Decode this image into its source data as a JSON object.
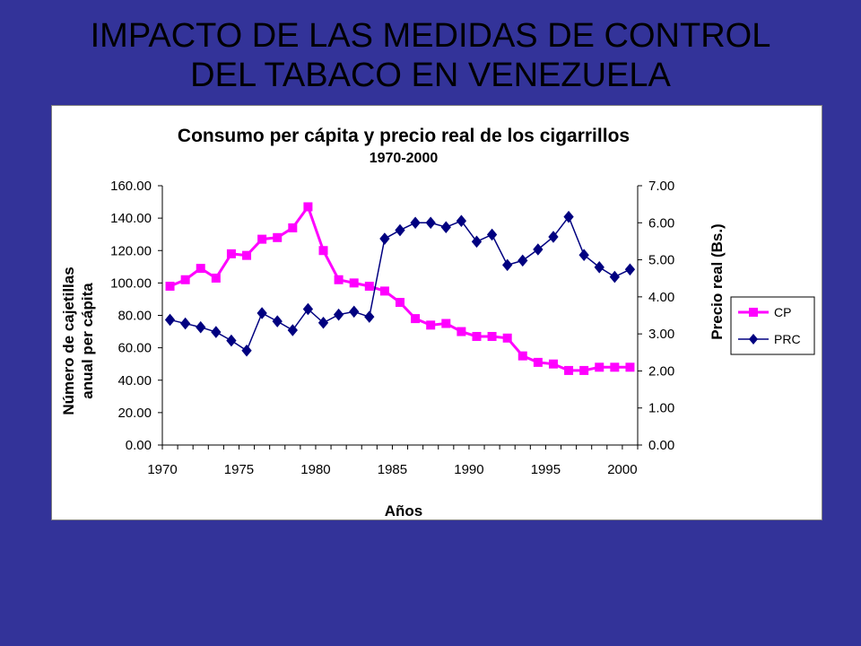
{
  "slide": {
    "title_line1": "IMPACTO DE LAS MEDIDAS DE CONTROL",
    "title_line2": "DEL TABACO EN VENEZUELA"
  },
  "chart_data": {
    "type": "line",
    "title": "Consumo per cápita y precio real de los cigarrillos",
    "subtitle": "1970-2000",
    "xlabel": "Años",
    "ylabel_line1": "Número de cajetillas",
    "ylabel_line2": "anual per cápita",
    "y2label": "Precio real (Bs.)",
    "xlim": [
      1970,
      2001
    ],
    "ylim": [
      0,
      160
    ],
    "y2lim": [
      0,
      7
    ],
    "x_ticks": [
      "1970",
      "1975",
      "1980",
      "1985",
      "1990",
      "1995",
      "2000"
    ],
    "y_ticks": [
      "0.00",
      "20.00",
      "40.00",
      "60.00",
      "80.00",
      "100.00",
      "120.00",
      "140.00",
      "160.00"
    ],
    "y2_ticks": [
      "0.00",
      "1.00",
      "2.00",
      "3.00",
      "4.00",
      "5.00",
      "6.00",
      "7.00"
    ],
    "grid": false,
    "legend_position": "right",
    "colors": {
      "CP": "#ff00ff",
      "PRC": "#000080"
    },
    "series": [
      {
        "name": "CP",
        "axis": "left",
        "marker": "square",
        "x": [
          1970,
          1971,
          1972,
          1973,
          1974,
          1975,
          1976,
          1977,
          1978,
          1979,
          1980,
          1981,
          1982,
          1983,
          1984,
          1985,
          1986,
          1987,
          1988,
          1989,
          1990,
          1991,
          1992,
          1993,
          1994,
          1995,
          1996,
          1997,
          1998,
          1999,
          2000
        ],
        "values": [
          98,
          102,
          109,
          103,
          118,
          117,
          127,
          128,
          134,
          147,
          120,
          102,
          100,
          98,
          95,
          88,
          78,
          74,
          75,
          70,
          67,
          67,
          66,
          55,
          51,
          50,
          46,
          46,
          48,
          48,
          48
        ]
      },
      {
        "name": "PRC",
        "axis": "right",
        "marker": "diamond",
        "x": [
          1970,
          1971,
          1972,
          1973,
          1974,
          1975,
          1976,
          1977,
          1978,
          1979,
          1980,
          1981,
          1982,
          1983,
          1984,
          1985,
          1986,
          1987,
          1988,
          1989,
          1990,
          1991,
          1992,
          1993,
          1994,
          1995,
          1996,
          1997,
          1998,
          1999,
          2000
        ],
        "values": [
          3.38,
          3.28,
          3.18,
          3.05,
          2.82,
          2.55,
          3.56,
          3.34,
          3.1,
          3.67,
          3.3,
          3.52,
          3.6,
          3.46,
          5.57,
          5.8,
          6.0,
          6.0,
          5.88,
          6.05,
          5.49,
          5.68,
          4.86,
          4.98,
          5.28,
          5.62,
          6.16,
          5.13,
          4.8,
          4.54,
          4.74
        ]
      }
    ]
  }
}
